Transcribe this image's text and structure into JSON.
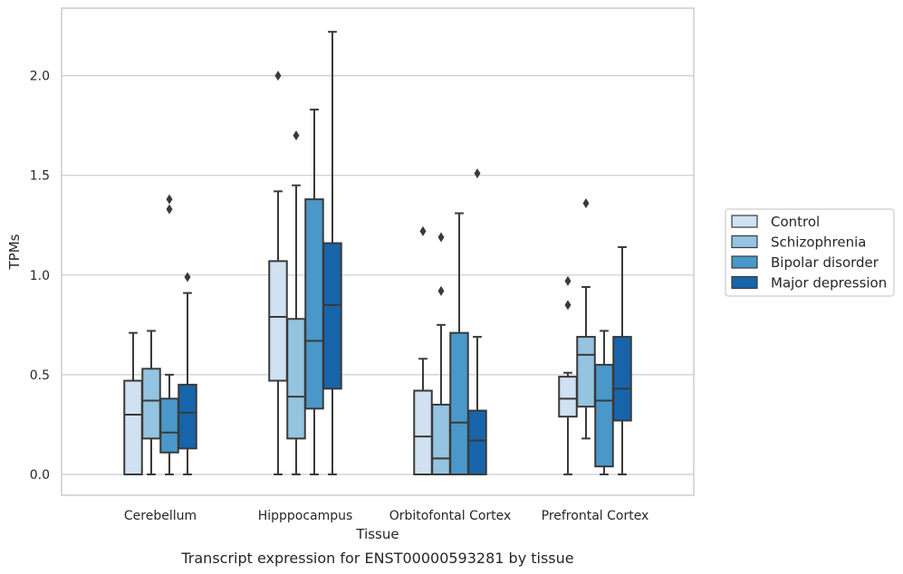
{
  "chart_data": {
    "type": "box",
    "xlabel": "Tissue",
    "ylabel": "TPMs",
    "caption": "Transcript expression for ENST00000593281 by tissue",
    "ylim": [
      -0.11,
      2.34
    ],
    "yticks": [
      0.0,
      0.5,
      1.0,
      1.5,
      2.0
    ],
    "ytick_labels": [
      "0.0",
      "0.5",
      "1.0",
      "1.5",
      "2.0"
    ],
    "grid": "horizontal",
    "legend_position": "right",
    "categories": [
      "Cerebellum",
      "Hipppocampus",
      "Orbitofontal Cortex",
      "Prefrontal Cortex"
    ],
    "series": [
      {
        "name": "Control",
        "color": "#d0e1f2",
        "boxes": [
          {
            "whislo": 0.0,
            "q1": 0.0,
            "med": 0.3,
            "q3": 0.47,
            "whishi": 0.71,
            "fliers": []
          },
          {
            "whislo": 0.0,
            "q1": 0.47,
            "med": 0.79,
            "q3": 1.07,
            "whishi": 1.42,
            "fliers": [
              2.0
            ]
          },
          {
            "whislo": 0.0,
            "q1": 0.0,
            "med": 0.19,
            "q3": 0.42,
            "whishi": 0.58,
            "fliers": [
              1.22
            ]
          },
          {
            "whislo": 0.0,
            "q1": 0.29,
            "med": 0.38,
            "q3": 0.49,
            "whishi": 0.51,
            "fliers": [
              0.97,
              0.85
            ]
          }
        ]
      },
      {
        "name": "Schizophrenia",
        "color": "#94c4df",
        "boxes": [
          {
            "whislo": 0.0,
            "q1": 0.18,
            "med": 0.37,
            "q3": 0.53,
            "whishi": 0.72,
            "fliers": []
          },
          {
            "whislo": 0.0,
            "q1": 0.18,
            "med": 0.39,
            "q3": 0.78,
            "whishi": 1.45,
            "fliers": [
              1.7
            ]
          },
          {
            "whislo": 0.0,
            "q1": 0.0,
            "med": 0.08,
            "q3": 0.35,
            "whishi": 0.75,
            "fliers": [
              1.19,
              0.92
            ]
          },
          {
            "whislo": 0.18,
            "q1": 0.34,
            "med": 0.6,
            "q3": 0.69,
            "whishi": 0.94,
            "fliers": [
              1.36
            ]
          }
        ]
      },
      {
        "name": "Bipolar disorder",
        "color": "#4a98c9",
        "boxes": [
          {
            "whislo": 0.0,
            "q1": 0.11,
            "med": 0.21,
            "q3": 0.38,
            "whishi": 0.5,
            "fliers": [
              1.38,
              1.33
            ]
          },
          {
            "whislo": 0.0,
            "q1": 0.33,
            "med": 0.67,
            "q3": 1.38,
            "whishi": 1.83,
            "fliers": []
          },
          {
            "whislo": 0.0,
            "q1": 0.0,
            "med": 0.26,
            "q3": 0.71,
            "whishi": 1.31,
            "fliers": []
          },
          {
            "whislo": 0.0,
            "q1": 0.04,
            "med": 0.37,
            "q3": 0.55,
            "whishi": 0.72,
            "fliers": []
          }
        ]
      },
      {
        "name": "Major depression",
        "color": "#1764ab",
        "boxes": [
          {
            "whislo": 0.0,
            "q1": 0.13,
            "med": 0.31,
            "q3": 0.45,
            "whishi": 0.91,
            "fliers": [
              0.99
            ]
          },
          {
            "whislo": 0.0,
            "q1": 0.43,
            "med": 0.85,
            "q3": 1.16,
            "whishi": 2.22,
            "fliers": []
          },
          {
            "whislo": 0.0,
            "q1": 0.0,
            "med": 0.17,
            "q3": 0.32,
            "whishi": 0.69,
            "fliers": [
              1.51
            ]
          },
          {
            "whislo": 0.0,
            "q1": 0.27,
            "med": 0.43,
            "q3": 0.69,
            "whishi": 1.14,
            "fliers": []
          }
        ]
      }
    ]
  }
}
